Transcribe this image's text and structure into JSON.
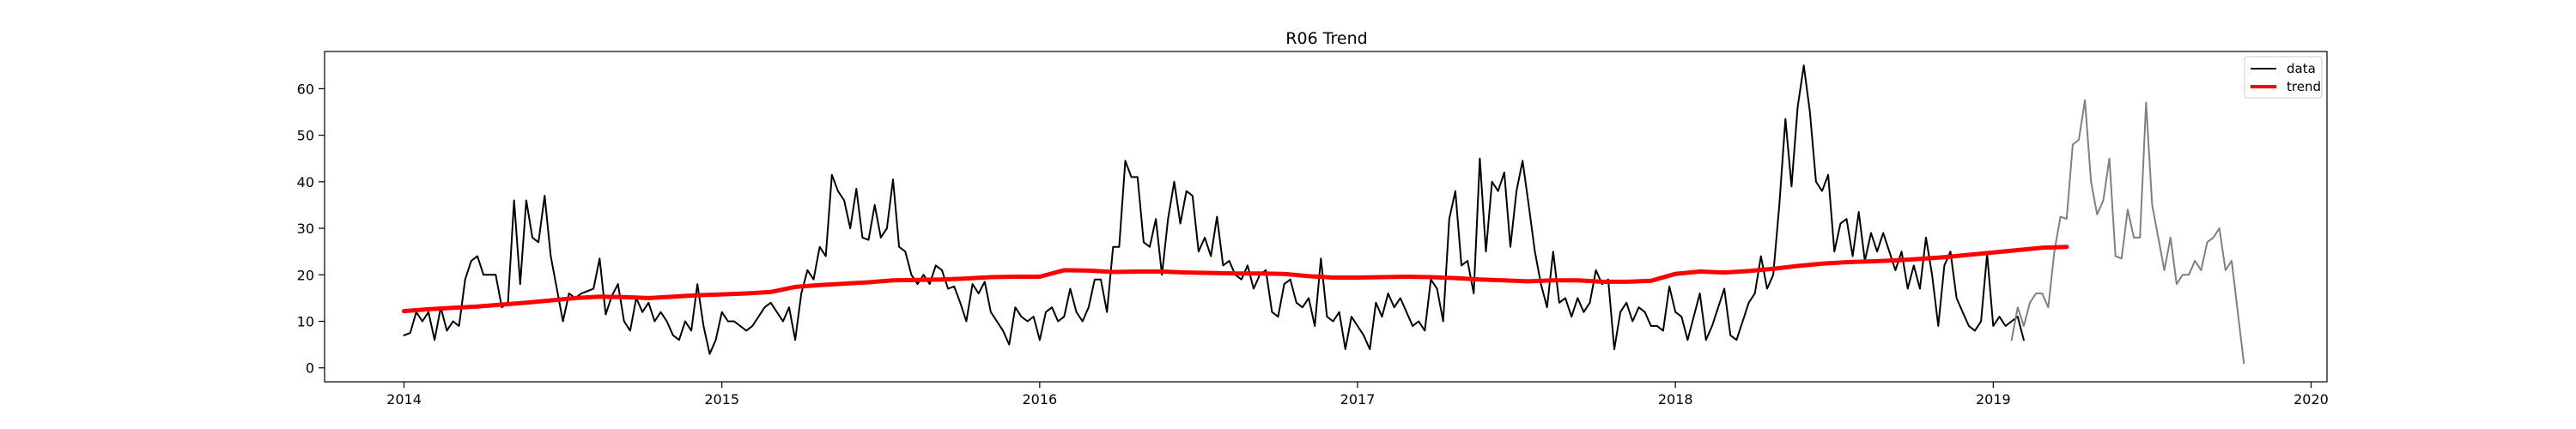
{
  "chart_data": {
    "type": "line",
    "title": "R06 Trend",
    "xlabel": "",
    "ylabel": "",
    "xlim": [
      2013.75,
      2020.05
    ],
    "ylim": [
      -3,
      68
    ],
    "x_ticks": [
      2014,
      2015,
      2016,
      2017,
      2018,
      2019,
      2020
    ],
    "x_tick_labels": [
      "2014",
      "2015",
      "2016",
      "2017",
      "2018",
      "2019",
      "2020"
    ],
    "y_ticks": [
      0,
      10,
      20,
      30,
      40,
      50,
      60
    ],
    "y_tick_labels": [
      "0",
      "10",
      "20",
      "30",
      "40",
      "50",
      "60"
    ],
    "grid": false,
    "legend": {
      "placement": "top-right",
      "entries": [
        "data",
        "trend"
      ]
    },
    "series": [
      {
        "name": "data",
        "color": "#000000",
        "x_start": 2014.0,
        "x_step_weeks": 1,
        "values": [
          7,
          7.5,
          12,
          10,
          12,
          6,
          13,
          8,
          10,
          9,
          19,
          23,
          24,
          20,
          20,
          20,
          13,
          14,
          36,
          18,
          36,
          28,
          27,
          37,
          24,
          17,
          10,
          16,
          15,
          16,
          16.5,
          17,
          23.5,
          11.5,
          15.5,
          18,
          10,
          8,
          15,
          12,
          14,
          10,
          12,
          10,
          7,
          6,
          10,
          8,
          18,
          9,
          3,
          6,
          12,
          10,
          10,
          9,
          8,
          9,
          11,
          13,
          14,
          12,
          10,
          13,
          6,
          16,
          21,
          19,
          26,
          24,
          41.5,
          38,
          36,
          30,
          38.5,
          28,
          27.5,
          35,
          28,
          30,
          40.5,
          26,
          25,
          20,
          18,
          20,
          18,
          22,
          21,
          17,
          17.5,
          14,
          10,
          18,
          16,
          18.5,
          12,
          10,
          8,
          5,
          13,
          11,
          10,
          11,
          6,
          12,
          13,
          10,
          11,
          17,
          12,
          10,
          13,
          19,
          19,
          12,
          26,
          26,
          44.5,
          41,
          41,
          27,
          26,
          32,
          20,
          32,
          40,
          31,
          38,
          37,
          25,
          28,
          24,
          32.5,
          22,
          23,
          20,
          19,
          22,
          17,
          20,
          21,
          12,
          11,
          18,
          19,
          14,
          13,
          15,
          9,
          23.5,
          11,
          10,
          12,
          4,
          11,
          9,
          7,
          4,
          14,
          11,
          16,
          13,
          15,
          12,
          9,
          10,
          8,
          19,
          17,
          10,
          32,
          38,
          22,
          23,
          16,
          45,
          25,
          40,
          38,
          42,
          26,
          38,
          44.5,
          35,
          25,
          18,
          13,
          25,
          14,
          15,
          11,
          15,
          12,
          14,
          21,
          18,
          19,
          4,
          12,
          14,
          10,
          13,
          12,
          9,
          9,
          8,
          17.5,
          12,
          11,
          6,
          11,
          16,
          6,
          9,
          13,
          17,
          7,
          6,
          10,
          14,
          16,
          24,
          17,
          20,
          35,
          53.5,
          39,
          56,
          65,
          55,
          40,
          38,
          41.5,
          25,
          31,
          32,
          24,
          33.5,
          23,
          29,
          25,
          29,
          25,
          21,
          25,
          17,
          22,
          17,
          28,
          20,
          9,
          22,
          25,
          15,
          12,
          9,
          8,
          10,
          24.5,
          9,
          11,
          9,
          10,
          11,
          6
        ]
      },
      {
        "name": "",
        "color": "#808080",
        "x_start": 2019.0576923,
        "x_step_weeks": 1,
        "values": [
          6,
          13,
          9,
          14,
          16,
          16,
          13,
          25,
          32.5,
          32,
          48,
          49,
          57.5,
          40,
          33,
          36,
          45,
          24,
          23.5,
          34,
          28,
          28,
          57,
          35,
          28,
          21,
          28,
          18,
          20,
          20,
          23,
          21,
          27,
          28,
          30,
          21,
          23,
          12,
          1
        ]
      },
      {
        "name": "trend",
        "color": "#ff0000",
        "x_start": 2014.0,
        "x_step_weeks": 4,
        "values": [
          12.2,
          12.6,
          12.9,
          13.2,
          13.6,
          14.0,
          14.5,
          15.0,
          15.3,
          15.2,
          15.0,
          15.3,
          15.6,
          15.8,
          16.0,
          16.3,
          17.4,
          17.8,
          18.1,
          18.4,
          18.8,
          18.9,
          19.0,
          19.2,
          19.5,
          19.6,
          19.6,
          21.0,
          20.9,
          20.6,
          20.7,
          20.7,
          20.5,
          20.4,
          20.3,
          20.3,
          20.2,
          19.7,
          19.4,
          19.4,
          19.5,
          19.6,
          19.5,
          19.3,
          19.0,
          18.8,
          18.6,
          18.8,
          18.8,
          18.5,
          18.5,
          18.7,
          20.2,
          20.7,
          20.5,
          20.8,
          21.3,
          21.9,
          22.4,
          22.7,
          22.9,
          23.1,
          23.4,
          23.8,
          24.3,
          24.8,
          25.3,
          25.8,
          26.0
        ]
      }
    ]
  }
}
